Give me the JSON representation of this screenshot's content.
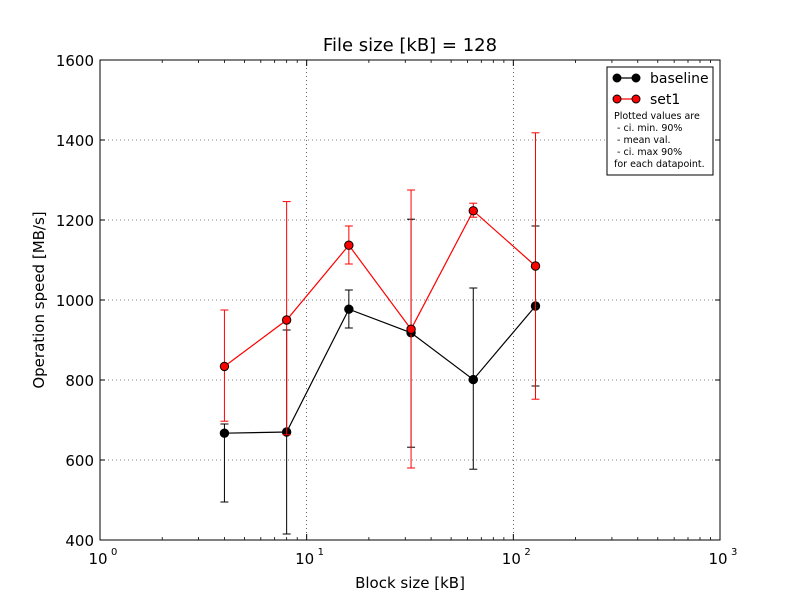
{
  "chart_data": {
    "type": "line",
    "title": "File size [kB] = 128",
    "xlabel": "Block size [kB]",
    "ylabel": "Operation speed [MB/s]",
    "xscale": "log",
    "xlim": [
      1,
      1000
    ],
    "ylim": [
      400,
      1600
    ],
    "x_ticks": [
      {
        "value": 1,
        "base": "10",
        "exp": "0"
      },
      {
        "value": 10,
        "base": "10",
        "exp": "1"
      },
      {
        "value": 100,
        "base": "10",
        "exp": "2"
      },
      {
        "value": 1000,
        "base": "10",
        "exp": "3"
      }
    ],
    "y_ticks": [
      400,
      600,
      800,
      1000,
      1200,
      1400,
      1600
    ],
    "grid": true,
    "legend_position": "top-right",
    "legend_note": [
      "Plotted values are",
      " - ci. min. 90%",
      " - mean val.",
      " - ci. max 90%",
      "for each datapoint."
    ],
    "x": [
      4,
      8,
      16,
      32,
      64,
      128
    ],
    "series": [
      {
        "name": "baseline",
        "color": "#000000",
        "values": [
          667,
          670,
          977,
          918,
          801,
          985
        ],
        "ci_low": [
          495,
          415,
          930,
          632,
          577,
          785
        ],
        "ci_high": [
          690,
          925,
          1025,
          1202,
          1030,
          1185
        ]
      },
      {
        "name": "set1",
        "color": "#ff0000",
        "values": [
          834,
          950,
          1137,
          927,
          1223,
          1085
        ],
        "ci_low": [
          697,
          663,
          1090,
          580,
          1207,
          752
        ],
        "ci_high": [
          975,
          1246,
          1185,
          1275,
          1242,
          1418
        ]
      }
    ]
  }
}
